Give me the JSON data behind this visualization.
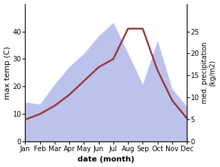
{
  "months": [
    "Jan",
    "Feb",
    "Mar",
    "Apr",
    "May",
    "Jun",
    "Jul",
    "Aug",
    "Sep",
    "Oct",
    "Nov",
    "Dec"
  ],
  "month_indices": [
    1,
    2,
    3,
    4,
    5,
    6,
    7,
    8,
    9,
    10,
    11,
    12
  ],
  "max_temp": [
    8.0,
    10.0,
    13.0,
    17.0,
    22.0,
    27.0,
    30.0,
    41.0,
    41.0,
    26.0,
    15.0,
    8.5
  ],
  "precipitation": [
    9.0,
    8.5,
    13.0,
    17.0,
    20.0,
    24.0,
    27.0,
    20.0,
    13.0,
    23.0,
    12.0,
    8.0
  ],
  "temp_color": "#993333",
  "precip_color": "#b0b8e8",
  "bg_color": "#ffffff",
  "temp_ylim": [
    0,
    50
  ],
  "precip_ylim": [
    0,
    31.25
  ],
  "temp_yticks": [
    0,
    10,
    20,
    30,
    40
  ],
  "precip_yticks": [
    0,
    5,
    10,
    15,
    20,
    25
  ],
  "xlabel": "date (month)",
  "ylabel_left": "max temp (C)",
  "ylabel_right": "med. precipitation\n(kg/m2)",
  "temp_linewidth": 1.8,
  "fontsize_labels": 8,
  "fontsize_axis_label": 7,
  "fontsize_ticks": 7
}
